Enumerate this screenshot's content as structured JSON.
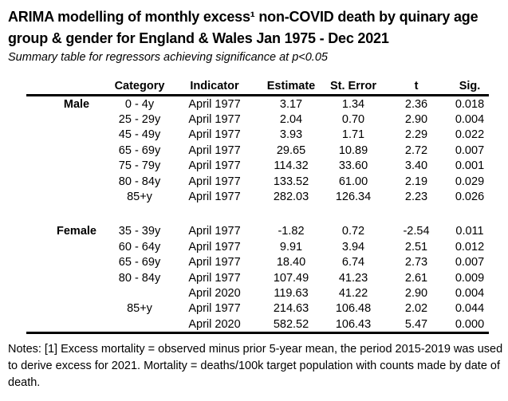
{
  "header": {
    "title_lines": [
      "ARIMA modelling of monthly excess¹ non-COVID death by quinary age",
      "group & gender for England & Wales Jan 1975 - Dec 2021"
    ],
    "subtitle": "Summary table for regressors achieving significance at p<0.05"
  },
  "table": {
    "columns": [
      "",
      "Category",
      "Indicator",
      "Estimate",
      "St. Error",
      "t",
      "Sig."
    ],
    "sections": [
      {
        "gender": "Male",
        "rows": [
          {
            "category": "0 - 4y",
            "indicator": "April 1977",
            "estimate": "3.17",
            "st_error": "1.34",
            "t": "2.36",
            "sig": "0.018"
          },
          {
            "category": "25 - 29y",
            "indicator": "April 1977",
            "estimate": "2.04",
            "st_error": "0.70",
            "t": "2.90",
            "sig": "0.004"
          },
          {
            "category": "45 - 49y",
            "indicator": "April 1977",
            "estimate": "3.93",
            "st_error": "1.71",
            "t": "2.29",
            "sig": "0.022"
          },
          {
            "category": "65 - 69y",
            "indicator": "April 1977",
            "estimate": "29.65",
            "st_error": "10.89",
            "t": "2.72",
            "sig": "0.007"
          },
          {
            "category": "75 - 79y",
            "indicator": "April 1977",
            "estimate": "114.32",
            "st_error": "33.60",
            "t": "3.40",
            "sig": "0.001"
          },
          {
            "category": "80 - 84y",
            "indicator": "April 1977",
            "estimate": "133.52",
            "st_error": "61.00",
            "t": "2.19",
            "sig": "0.029"
          },
          {
            "category": "85+y",
            "indicator": "April 1977",
            "estimate": "282.03",
            "st_error": "126.34",
            "t": "2.23",
            "sig": "0.026"
          }
        ]
      },
      {
        "gender": "Female",
        "rows": [
          {
            "category": "35 - 39y",
            "indicator": "April 1977",
            "estimate": "-1.82",
            "st_error": "0.72",
            "t": "-2.54",
            "sig": "0.011"
          },
          {
            "category": "60 - 64y",
            "indicator": "April 1977",
            "estimate": "9.91",
            "st_error": "3.94",
            "t": "2.51",
            "sig": "0.012"
          },
          {
            "category": "65 - 69y",
            "indicator": "April 1977",
            "estimate": "18.40",
            "st_error": "6.74",
            "t": "2.73",
            "sig": "0.007"
          },
          {
            "category": "80 - 84y",
            "indicator": "April 1977",
            "estimate": "107.49",
            "st_error": "41.23",
            "t": "2.61",
            "sig": "0.009"
          },
          {
            "category": "",
            "indicator": "April 2020",
            "estimate": "119.63",
            "st_error": "41.22",
            "t": "2.90",
            "sig": "0.004"
          },
          {
            "category": "85+y",
            "indicator": "April 1977",
            "estimate": "214.63",
            "st_error": "106.48",
            "t": "2.02",
            "sig": "0.044"
          },
          {
            "category": "",
            "indicator": "April 2020",
            "estimate": "582.52",
            "st_error": "106.43",
            "t": "5.47",
            "sig": "0.000"
          }
        ]
      }
    ]
  },
  "notes": {
    "lines": [
      "Notes: [1] Excess mortality = observed minus prior 5-year mean, the period 2015-2019 was used",
      "to derive excess for 2021. Mortality = deaths/100k target population with counts made by date of",
      "death."
    ]
  },
  "colors": {
    "text": "#000000",
    "background": "#ffffff",
    "rule": "#000000"
  }
}
